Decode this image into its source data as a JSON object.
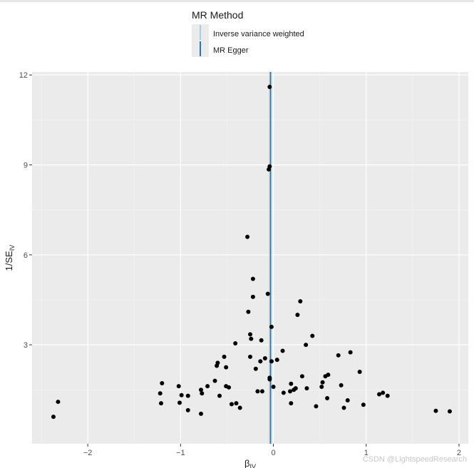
{
  "chart_data": {
    "type": "scatter",
    "title": "",
    "xlabel": "β",
    "xlabel_sub": "IV",
    "ylabel": "1/SE",
    "ylabel_sub": "IV",
    "xlim": [
      -2.6,
      2.1
    ],
    "ylim": [
      -0.3,
      12.1
    ],
    "x_ticks": [
      -2,
      -1,
      0,
      1,
      2
    ],
    "x_tick_labels": [
      "−2",
      "−1",
      "0",
      "1",
      "2"
    ],
    "y_ticks": [
      3,
      6,
      9,
      12
    ],
    "y_tick_labels": [
      "3",
      "6",
      "9",
      "12"
    ],
    "grid": true,
    "legend": {
      "title": "MR Method",
      "placement": "top",
      "entries": [
        {
          "label": "Inverse variance weighted",
          "color": "#a6cee3"
        },
        {
          "label": "MR Egger",
          "color": "#1f78b4"
        }
      ]
    },
    "lines": [
      {
        "name": "Inverse variance weighted",
        "x": -0.04,
        "color": "#a6cee3"
      },
      {
        "name": "MR Egger",
        "x": -0.03,
        "color": "#1f78b4"
      }
    ],
    "points": [
      [
        -2.37,
        0.6
      ],
      [
        -2.32,
        1.1
      ],
      [
        -1.2,
        1.72
      ],
      [
        -1.22,
        1.38
      ],
      [
        -1.21,
        1.05
      ],
      [
        -1.02,
        1.62
      ],
      [
        -0.99,
        1.32
      ],
      [
        -1.01,
        1.07
      ],
      [
        -0.92,
        1.3
      ],
      [
        -0.92,
        0.82
      ],
      [
        -0.78,
        1.5
      ],
      [
        -0.77,
        1.38
      ],
      [
        -0.78,
        0.7
      ],
      [
        -0.71,
        1.62
      ],
      [
        -0.63,
        1.8
      ],
      [
        -0.61,
        2.3
      ],
      [
        -0.6,
        2.4
      ],
      [
        -0.58,
        1.3
      ],
      [
        -0.53,
        2.6
      ],
      [
        -0.51,
        2.25
      ],
      [
        -0.51,
        1.62
      ],
      [
        -0.48,
        1.58
      ],
      [
        -0.45,
        1.02
      ],
      [
        -0.4,
        1.05
      ],
      [
        -0.36,
        0.9
      ],
      [
        -0.41,
        3.05
      ],
      [
        -0.28,
        6.6
      ],
      [
        -0.27,
        4.1
      ],
      [
        -0.25,
        3.35
      ],
      [
        -0.24,
        3.2
      ],
      [
        -0.25,
        2.6
      ],
      [
        -0.22,
        5.2
      ],
      [
        -0.22,
        4.6
      ],
      [
        -0.19,
        2.2
      ],
      [
        -0.17,
        1.45
      ],
      [
        -0.14,
        2.45
      ],
      [
        -0.13,
        3.15
      ],
      [
        -0.12,
        1.45
      ],
      [
        -0.09,
        2.55
      ],
      [
        -0.06,
        4.7
      ],
      [
        -0.04,
        11.6
      ],
      [
        -0.04,
        8.95
      ],
      [
        -0.05,
        8.85
      ],
      [
        -0.04,
        1.9
      ],
      [
        -0.04,
        1.85
      ],
      [
        -0.02,
        3.6
      ],
      [
        -0.02,
        2.45
      ],
      [
        0.0,
        1.6
      ],
      [
        0.04,
        2.5
      ],
      [
        0.1,
        2.8
      ],
      [
        0.11,
        1.4
      ],
      [
        0.18,
        1.45
      ],
      [
        0.19,
        1.05
      ],
      [
        0.19,
        1.7
      ],
      [
        0.22,
        1.5
      ],
      [
        0.24,
        1.55
      ],
      [
        0.26,
        4.0
      ],
      [
        0.29,
        4.45
      ],
      [
        0.31,
        1.95
      ],
      [
        0.35,
        3.0
      ],
      [
        0.36,
        1.55
      ],
      [
        0.42,
        3.3
      ],
      [
        0.46,
        0.95
      ],
      [
        0.52,
        1.6
      ],
      [
        0.53,
        1.75
      ],
      [
        0.56,
        1.95
      ],
      [
        0.59,
        2.0
      ],
      [
        0.58,
        1.22
      ],
      [
        0.7,
        2.65
      ],
      [
        0.73,
        1.65
      ],
      [
        0.76,
        0.9
      ],
      [
        0.8,
        1.15
      ],
      [
        0.83,
        2.75
      ],
      [
        0.93,
        2.1
      ],
      [
        0.97,
        1.0
      ],
      [
        1.14,
        1.35
      ],
      [
        1.18,
        1.4
      ],
      [
        1.23,
        1.3
      ],
      [
        1.75,
        0.8
      ],
      [
        1.9,
        0.78
      ]
    ]
  },
  "watermark": "CSDN @LightspeedResearch"
}
